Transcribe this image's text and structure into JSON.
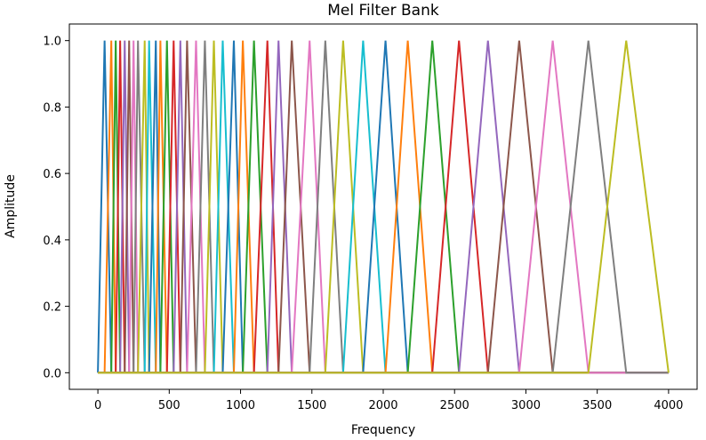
{
  "chart_data": {
    "type": "line",
    "title": "Mel Filter Bank",
    "xlabel": "Frequency",
    "ylabel": "Amplitude",
    "xlim": [
      -200,
      4200
    ],
    "ylim": [
      -0.05,
      1.05
    ],
    "xticks": [
      0,
      500,
      1000,
      1500,
      2000,
      2500,
      3000,
      3500,
      4000
    ],
    "yticks": [
      "0.0",
      "0.2",
      "0.4",
      "0.6",
      "0.8",
      "1.0"
    ],
    "grid": false,
    "legend": "none",
    "colors": [
      "#1f77b4",
      "#ff7f0e",
      "#2ca02c",
      "#d62728",
      "#9467bd",
      "#8c564b",
      "#e377c2",
      "#7f7f7f",
      "#bcbd22",
      "#17becf"
    ],
    "centers": [
      47,
      94,
      125,
      156,
      188,
      219,
      250,
      281,
      328,
      359,
      406,
      438,
      484,
      531,
      578,
      625,
      688,
      750,
      813,
      875,
      953,
      1016,
      1094,
      1188,
      1266,
      1359,
      1484,
      1594,
      1719,
      1859,
      2016,
      2172,
      2344,
      2531,
      2734,
      2953,
      3188,
      3438,
      3703
    ],
    "edges": [
      0,
      47,
      94,
      125,
      156,
      188,
      219,
      250,
      281,
      328,
      359,
      406,
      438,
      484,
      531,
      578,
      625,
      688,
      750,
      813,
      875,
      953,
      1016,
      1094,
      1188,
      1266,
      1359,
      1484,
      1594,
      1719,
      1859,
      2016,
      2172,
      2344,
      2531,
      2734,
      2953,
      3188,
      3438,
      3703,
      4000
    ]
  }
}
